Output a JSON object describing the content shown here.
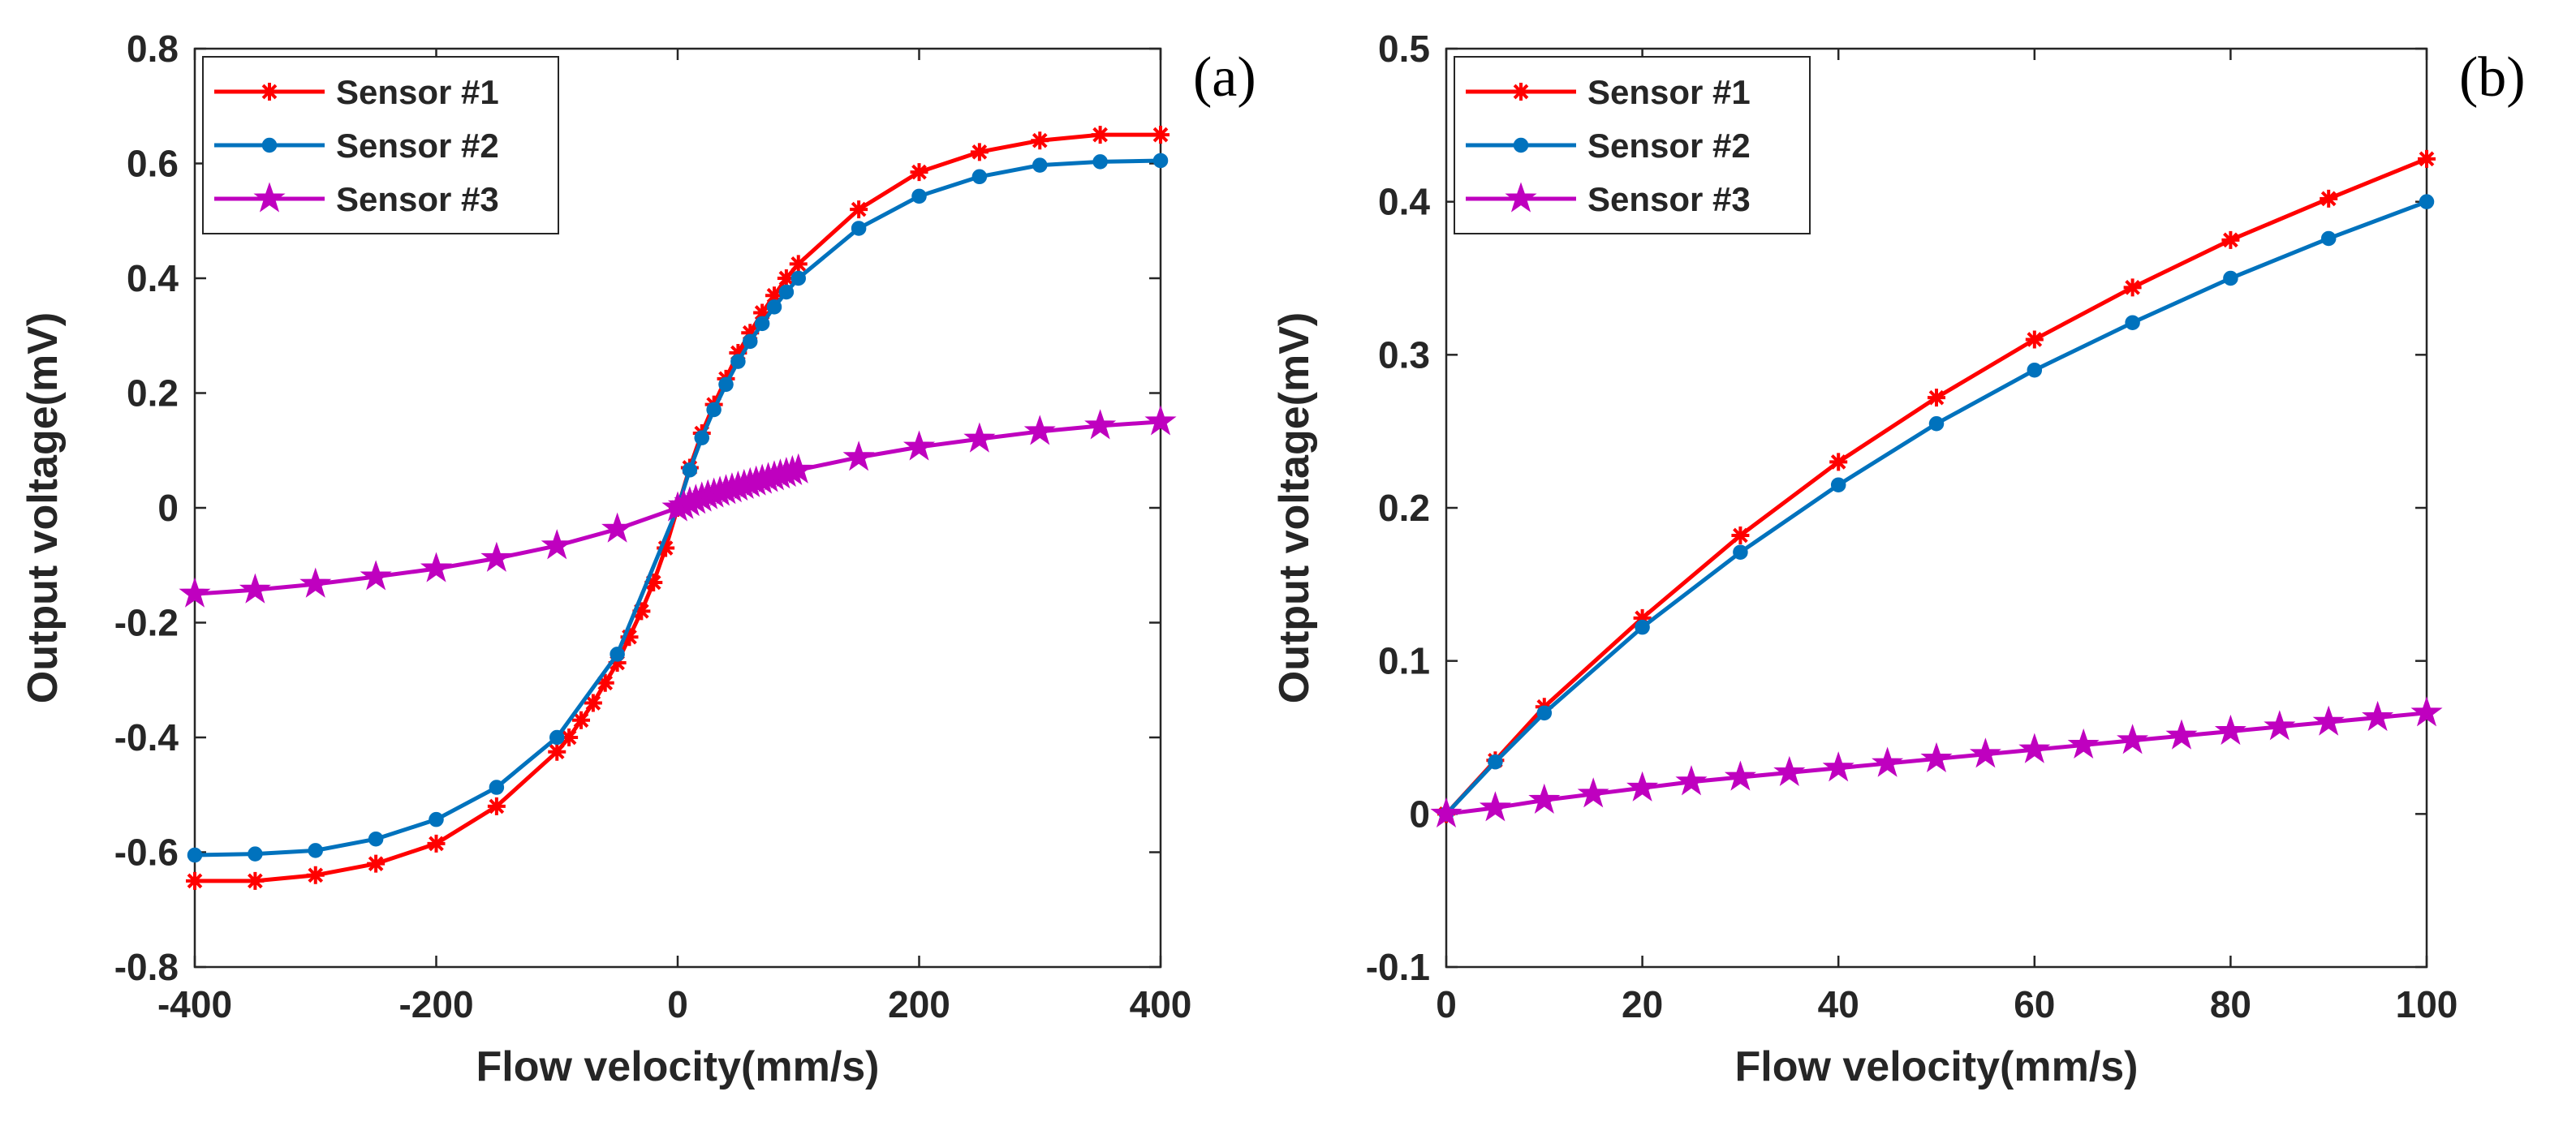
{
  "chart_data": [
    {
      "type": "line",
      "panel_label": "(a)",
      "xlabel": "Flow velocity(mm/s)",
      "ylabel": "Output voltage(mV)",
      "xlim": [
        -400,
        400
      ],
      "ylim": [
        -0.8,
        0.8
      ],
      "xticks": [
        -400,
        -200,
        0,
        200,
        400
      ],
      "yticks": [
        -0.8,
        -0.6,
        -0.4,
        -0.2,
        0,
        0.2,
        0.4,
        0.6,
        0.8
      ],
      "xtick_labels": [
        "-400",
        "-200",
        "0",
        "200",
        "400"
      ],
      "ytick_labels": [
        "-0.8",
        "-0.6",
        "-0.4",
        "-0.2",
        "0",
        "0.2",
        "0.4",
        "0.6",
        "0.8"
      ],
      "grid": false,
      "legend_position": "top-left",
      "series": [
        {
          "name": "Sensor #1",
          "color": "#ff0000",
          "marker": "asterisk",
          "x": [
            -400,
            -350,
            -300,
            -250,
            -200,
            -150,
            -100,
            -90,
            -80,
            -70,
            -60,
            -50,
            -40,
            -30,
            -20,
            -10,
            0,
            10,
            20,
            30,
            40,
            50,
            60,
            70,
            80,
            90,
            100,
            150,
            200,
            250,
            300,
            350,
            400
          ],
          "y": [
            -0.65,
            -0.65,
            -0.64,
            -0.62,
            -0.585,
            -0.52,
            -0.425,
            -0.4,
            -0.37,
            -0.34,
            -0.305,
            -0.27,
            -0.225,
            -0.18,
            -0.13,
            -0.07,
            0,
            0.07,
            0.13,
            0.18,
            0.225,
            0.27,
            0.305,
            0.34,
            0.37,
            0.4,
            0.425,
            0.52,
            0.585,
            0.62,
            0.64,
            0.65,
            0.65
          ]
        },
        {
          "name": "Sensor #2",
          "color": "#0072bd",
          "marker": "circle",
          "x": [
            -400,
            -350,
            -300,
            -250,
            -200,
            -150,
            -100,
            -50,
            0,
            10,
            20,
            30,
            40,
            50,
            60,
            70,
            80,
            90,
            100,
            150,
            200,
            250,
            300,
            350,
            400
          ],
          "y": [
            -0.605,
            -0.603,
            -0.597,
            -0.577,
            -0.543,
            -0.487,
            -0.4,
            -0.255,
            0,
            0.066,
            0.122,
            0.171,
            0.215,
            0.255,
            0.29,
            0.321,
            0.35,
            0.376,
            0.4,
            0.487,
            0.543,
            0.577,
            0.597,
            0.603,
            0.605
          ]
        },
        {
          "name": "Sensor #3",
          "color": "#bf00bf",
          "marker": "pentagram",
          "x": [
            -400,
            -350,
            -300,
            -250,
            -200,
            -150,
            -100,
            -50,
            0,
            5,
            10,
            15,
            20,
            25,
            30,
            35,
            40,
            45,
            50,
            55,
            60,
            65,
            70,
            75,
            80,
            85,
            90,
            95,
            100,
            150,
            200,
            250,
            300,
            350,
            400
          ],
          "y": [
            -0.15,
            -0.143,
            -0.133,
            -0.12,
            -0.106,
            -0.088,
            -0.066,
            -0.037,
            0,
            0.004,
            0.009,
            0.013,
            0.017,
            0.021,
            0.024,
            0.027,
            0.03,
            0.033,
            0.036,
            0.039,
            0.042,
            0.045,
            0.048,
            0.051,
            0.054,
            0.057,
            0.06,
            0.063,
            0.066,
            0.088,
            0.106,
            0.12,
            0.133,
            0.143,
            0.15
          ]
        }
      ]
    },
    {
      "type": "line",
      "panel_label": "(b)",
      "xlabel": "Flow velocity(mm/s)",
      "ylabel": "Output voltage(mV)",
      "xlim": [
        0,
        100
      ],
      "ylim": [
        -0.1,
        0.5
      ],
      "xticks": [
        0,
        20,
        40,
        60,
        80,
        100
      ],
      "yticks": [
        -0.1,
        0,
        0.1,
        0.2,
        0.3,
        0.4,
        0.5
      ],
      "xtick_labels": [
        "0",
        "20",
        "40",
        "60",
        "80",
        "100"
      ],
      "ytick_labels": [
        "-0.1",
        "0",
        "0.1",
        "0.2",
        "0.3",
        "0.4",
        "0.5"
      ],
      "grid": false,
      "legend_position": "top-left",
      "series": [
        {
          "name": "Sensor #1",
          "color": "#ff0000",
          "marker": "asterisk",
          "x": [
            0,
            5,
            10,
            20,
            30,
            40,
            50,
            60,
            70,
            80,
            90,
            100
          ],
          "y": [
            0,
            0.035,
            0.07,
            0.128,
            0.182,
            0.23,
            0.272,
            0.31,
            0.344,
            0.375,
            0.402,
            0.428
          ]
        },
        {
          "name": "Sensor #2",
          "color": "#0072bd",
          "marker": "circle",
          "x": [
            0,
            5,
            10,
            20,
            30,
            40,
            50,
            60,
            70,
            80,
            90,
            100
          ],
          "y": [
            0,
            0.034,
            0.066,
            0.122,
            0.171,
            0.215,
            0.255,
            0.29,
            0.321,
            0.35,
            0.376,
            0.4
          ]
        },
        {
          "name": "Sensor #3",
          "color": "#bf00bf",
          "marker": "pentagram",
          "x": [
            0,
            5,
            10,
            15,
            20,
            25,
            30,
            35,
            40,
            45,
            50,
            55,
            60,
            65,
            70,
            75,
            80,
            85,
            90,
            95,
            100
          ],
          "y": [
            0,
            0.004,
            0.009,
            0.013,
            0.017,
            0.021,
            0.024,
            0.027,
            0.03,
            0.033,
            0.036,
            0.039,
            0.042,
            0.045,
            0.048,
            0.051,
            0.054,
            0.057,
            0.06,
            0.063,
            0.066
          ]
        }
      ]
    }
  ]
}
